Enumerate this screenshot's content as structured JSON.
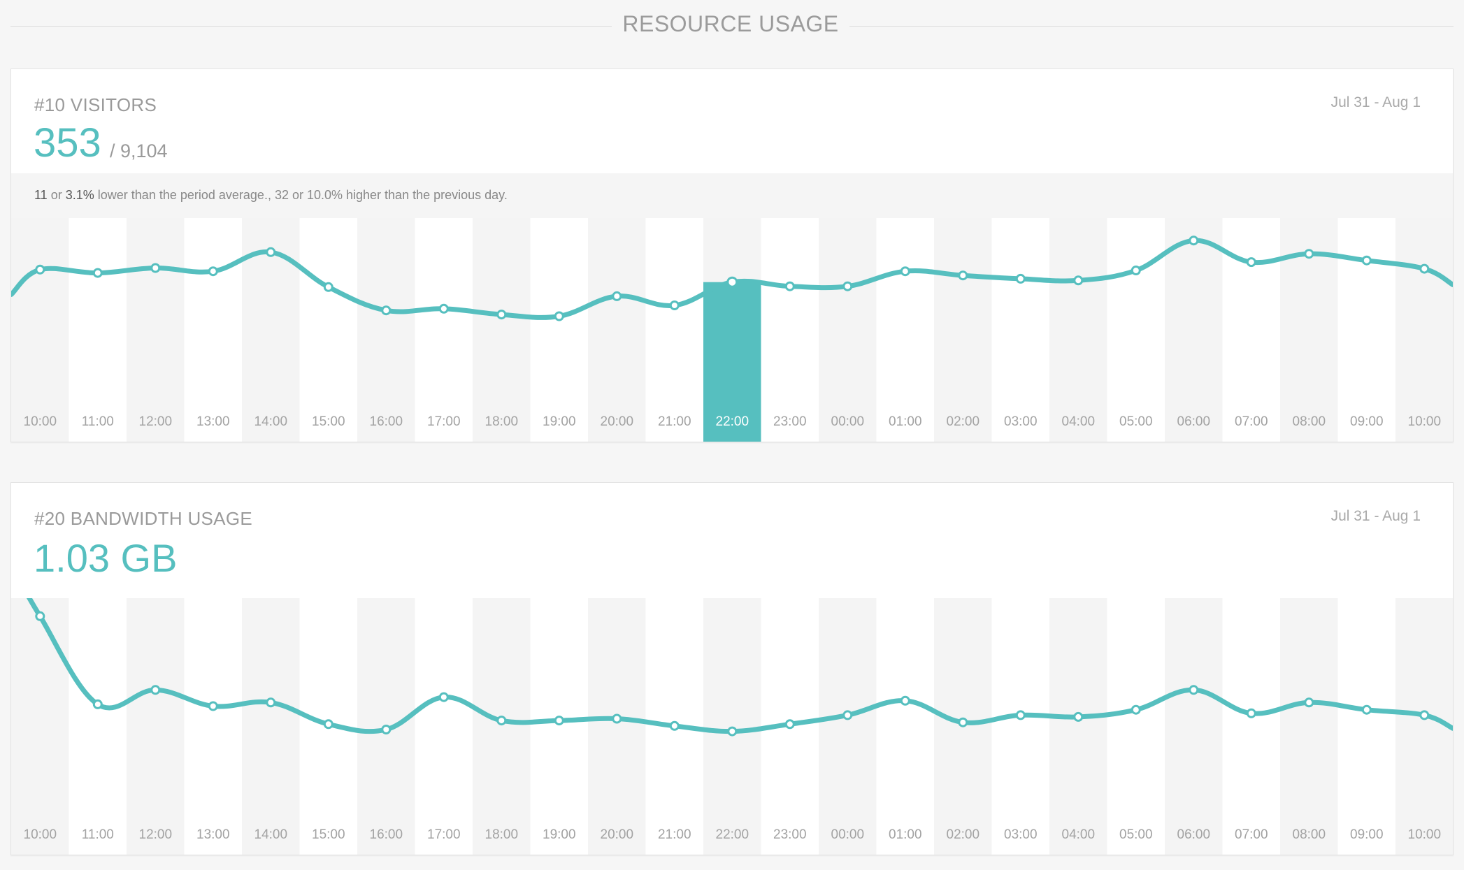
{
  "header": {
    "title": "RESOURCE USAGE"
  },
  "colors": {
    "accent": "#56bfbf",
    "column_even": "#f4f4f4",
    "column_odd": "#ffffff",
    "highlight_label_text": "#ffffff"
  },
  "visitors": {
    "title": "#10 VISITORS",
    "date_range": "Jul 31 - Aug 1",
    "value": "353",
    "total": "/ 9,104",
    "summary": {
      "delta_count": "11",
      "or_1": "or",
      "delta_pct": "3.1%",
      "rest": "lower than the period average., 32 or 10.0% higher than the previous day."
    }
  },
  "bandwidth": {
    "title": "#20 BANDWIDTH USAGE",
    "date_range": "Jul 31 - Aug 1",
    "value": "1.03 GB"
  },
  "chart_data": [
    {
      "type": "line",
      "name": "visitors",
      "x": [
        "10:00",
        "11:00",
        "12:00",
        "13:00",
        "14:00",
        "15:00",
        "16:00",
        "17:00",
        "18:00",
        "19:00",
        "20:00",
        "21:00",
        "22:00",
        "23:00",
        "00:00",
        "01:00",
        "02:00",
        "03:00",
        "04:00",
        "05:00",
        "06:00",
        "07:00",
        "08:00",
        "09:00",
        "10:00"
      ],
      "values": [
        368,
        364,
        370,
        366,
        389,
        347,
        319,
        321,
        314,
        312,
        336,
        325,
        353,
        348,
        348,
        366,
        361,
        357,
        355,
        367,
        403,
        377,
        387,
        379,
        369
      ],
      "highlight_index": 12,
      "ylim": [
        210,
        430
      ],
      "grid": false,
      "legend": "none"
    },
    {
      "type": "line",
      "name": "bandwidth",
      "x": [
        "10:00",
        "11:00",
        "12:00",
        "13:00",
        "14:00",
        "15:00",
        "16:00",
        "17:00",
        "18:00",
        "19:00",
        "20:00",
        "21:00",
        "22:00",
        "23:00",
        "00:00",
        "01:00",
        "02:00",
        "03:00",
        "04:00",
        "05:00",
        "06:00",
        "07:00",
        "08:00",
        "09:00",
        "10:00"
      ],
      "values": [
        110,
        61,
        69,
        60,
        62,
        50,
        47,
        65,
        52,
        52,
        53,
        49,
        46,
        50,
        55,
        63,
        51,
        55,
        54,
        58,
        69,
        56,
        62,
        58,
        55
      ],
      "ylim": [
        0,
        120
      ],
      "grid": false,
      "legend": "none"
    }
  ]
}
